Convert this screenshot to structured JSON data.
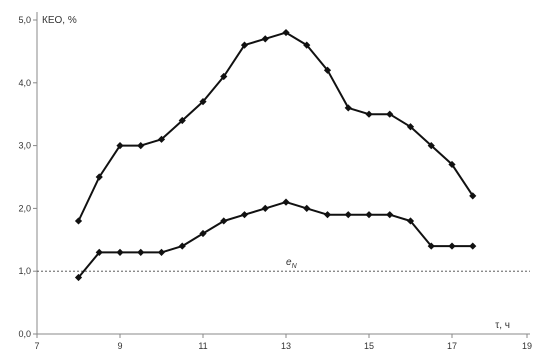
{
  "chart_data": {
    "type": "line",
    "title": "",
    "ylabel": "КЕО, %",
    "xlabel": "τ, ч",
    "xlim": [
      7,
      19
    ],
    "ylim": [
      0,
      5
    ],
    "x_tick_values": [
      7,
      9,
      11,
      13,
      15,
      17,
      19
    ],
    "x_ticks": [
      "7",
      "9",
      "11",
      "13",
      "15",
      "17",
      "19"
    ],
    "y_tick_values": [
      0,
      1,
      2,
      3,
      4,
      5
    ],
    "y_ticks": [
      "0,0",
      "1,0",
      "2,0",
      "3,0",
      "4,0",
      "5,0"
    ],
    "reference_line": {
      "y": 1.0,
      "label": "e",
      "label_sub": "N",
      "style": "dashed"
    },
    "grid": false,
    "marker": "diamond",
    "colors": {
      "line": "#111111",
      "axis": "#888888",
      "reference": "#444444"
    },
    "series": [
      {
        "x": [
          8,
          8.5,
          9,
          9.5,
          10,
          10.5,
          11,
          11.5,
          12,
          12.5,
          13,
          13.5,
          14,
          14.5,
          15,
          15.5,
          16,
          16.5,
          17,
          17.5
        ],
        "values": [
          1.8,
          2.5,
          3.0,
          3.0,
          3.1,
          3.4,
          3.7,
          4.1,
          4.6,
          4.7,
          4.8,
          4.6,
          4.2,
          3.6,
          3.5,
          3.5,
          3.3,
          3.0,
          2.7,
          2.2
        ]
      },
      {
        "x": [
          8,
          8.5,
          9,
          9.5,
          10,
          10.5,
          11,
          11.5,
          12,
          12.5,
          13,
          13.5,
          14,
          14.5,
          15,
          15.5,
          16,
          16.5,
          17,
          17.5
        ],
        "values": [
          0.9,
          1.3,
          1.3,
          1.3,
          1.3,
          1.4,
          1.6,
          1.8,
          1.9,
          2.0,
          2.1,
          2.0,
          1.9,
          1.9,
          1.9,
          1.9,
          1.8,
          1.4,
          1.4,
          1.4
        ]
      }
    ]
  }
}
